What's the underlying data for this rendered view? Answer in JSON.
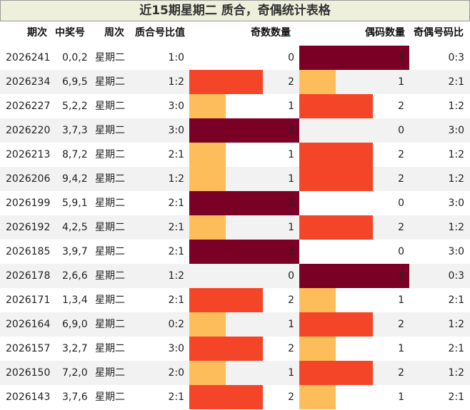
{
  "title": "近15期星期二 质合，奇偶统计表格",
  "headers": {
    "period": "期次",
    "winning": "中奖号",
    "weekday": "周次",
    "prime_ratio": "质合号比值",
    "odd_count": "奇数数量",
    "even_count": "偶码数量",
    "odd_even_ratio": "奇偶号码比"
  },
  "colors": {
    "count_0": "#ffffff",
    "count_1": "#fdbd5b",
    "count_2": "#f54528",
    "count_3": "#7b0025",
    "title_bg": "#eef0dc",
    "alt_row": "#f2f2f2"
  },
  "chart_data": {
    "type": "table",
    "title": "近15期星期二 质合，奇偶统计表格",
    "columns": [
      "期次",
      "中奖号",
      "周次",
      "质合号比值",
      "奇数数量",
      "偶码数量",
      "奇偶号码比"
    ],
    "rows": [
      {
        "period": "2026241",
        "numbers": "0,0,2",
        "weekday": "星期二",
        "prime_ratio": "1:0",
        "odd": 0,
        "even": 3,
        "odd_even_ratio": "0:3"
      },
      {
        "period": "2026234",
        "numbers": "6,9,5",
        "weekday": "星期二",
        "prime_ratio": "1:2",
        "odd": 2,
        "even": 1,
        "odd_even_ratio": "2:1"
      },
      {
        "period": "2026227",
        "numbers": "5,2,2",
        "weekday": "星期二",
        "prime_ratio": "3:0",
        "odd": 1,
        "even": 2,
        "odd_even_ratio": "1:2"
      },
      {
        "period": "2026220",
        "numbers": "3,7,3",
        "weekday": "星期二",
        "prime_ratio": "3:0",
        "odd": 3,
        "even": 0,
        "odd_even_ratio": "3:0"
      },
      {
        "period": "2026213",
        "numbers": "8,7,2",
        "weekday": "星期二",
        "prime_ratio": "2:1",
        "odd": 1,
        "even": 2,
        "odd_even_ratio": "1:2"
      },
      {
        "period": "2026206",
        "numbers": "9,4,2",
        "weekday": "星期二",
        "prime_ratio": "1:2",
        "odd": 1,
        "even": 2,
        "odd_even_ratio": "1:2"
      },
      {
        "period": "2026199",
        "numbers": "5,9,1",
        "weekday": "星期二",
        "prime_ratio": "2:1",
        "odd": 3,
        "even": 0,
        "odd_even_ratio": "3:0"
      },
      {
        "period": "2026192",
        "numbers": "4,2,5",
        "weekday": "星期二",
        "prime_ratio": "2:1",
        "odd": 1,
        "even": 2,
        "odd_even_ratio": "1:2"
      },
      {
        "period": "2026185",
        "numbers": "3,9,7",
        "weekday": "星期二",
        "prime_ratio": "2:1",
        "odd": 3,
        "even": 0,
        "odd_even_ratio": "3:0"
      },
      {
        "period": "2026178",
        "numbers": "2,6,6",
        "weekday": "星期二",
        "prime_ratio": "1:2",
        "odd": 0,
        "even": 3,
        "odd_even_ratio": "0:3"
      },
      {
        "period": "2026171",
        "numbers": "1,3,4",
        "weekday": "星期二",
        "prime_ratio": "2:1",
        "odd": 2,
        "even": 1,
        "odd_even_ratio": "2:1"
      },
      {
        "period": "2026164",
        "numbers": "6,9,0",
        "weekday": "星期二",
        "prime_ratio": "0:2",
        "odd": 1,
        "even": 2,
        "odd_even_ratio": "1:2"
      },
      {
        "period": "2026157",
        "numbers": "3,2,7",
        "weekday": "星期二",
        "prime_ratio": "3:0",
        "odd": 2,
        "even": 1,
        "odd_even_ratio": "2:1"
      },
      {
        "period": "2026150",
        "numbers": "7,2,0",
        "weekday": "星期二",
        "prime_ratio": "2:0",
        "odd": 1,
        "even": 2,
        "odd_even_ratio": "1:2"
      },
      {
        "period": "2026143",
        "numbers": "3,7,6",
        "weekday": "星期二",
        "prime_ratio": "2:1",
        "odd": 2,
        "even": 1,
        "odd_even_ratio": "2:1"
      }
    ]
  }
}
